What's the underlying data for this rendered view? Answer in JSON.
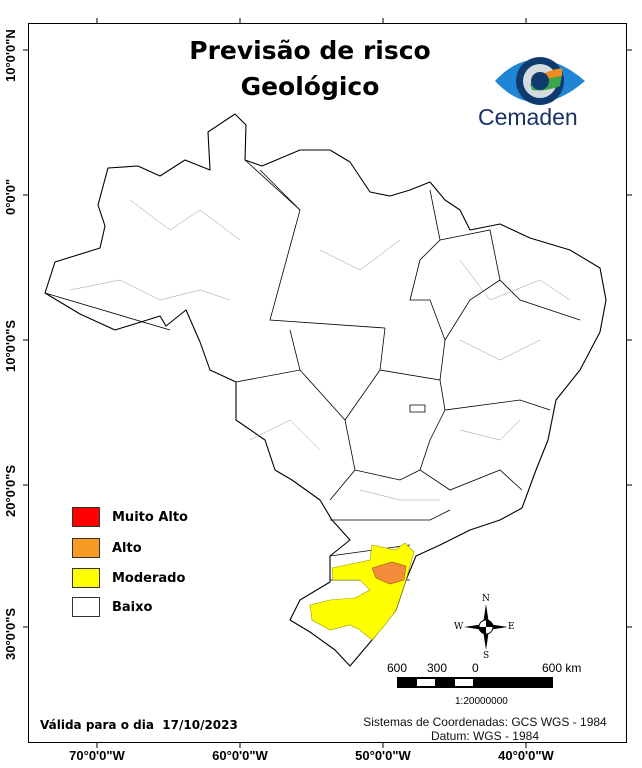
{
  "title": {
    "line1": "Previsão de risco",
    "line2": "Geológico"
  },
  "logo": {
    "text": "Cemaden"
  },
  "axes": {
    "longitude_labels": [
      "70°0'0\"W",
      "60°0'0\"W",
      "50°0'0\"W",
      "40°0'0\"W"
    ],
    "latitude_labels": [
      "10°0'0\"N",
      "0°0'0\"",
      "10°0'0\"S",
      "20°0'0\"S",
      "30°0'0\"S"
    ]
  },
  "legend": {
    "items": [
      {
        "label": "Muito Alto",
        "color": "#ff0000"
      },
      {
        "label": "Alto",
        "color": "#f59a23"
      },
      {
        "label": "Moderado",
        "color": "#ffff00"
      },
      {
        "label": "Baixo",
        "color": "#ffffff"
      }
    ]
  },
  "compass": {
    "n": "N",
    "s": "S",
    "e": "E",
    "w": "W"
  },
  "scale_bar": {
    "labels": [
      "600",
      "300",
      "0",
      "600 km"
    ],
    "ratio": "1:20000000"
  },
  "footer": {
    "valid_label": "Válida para o dia",
    "valid_date": "17/10/2023",
    "crs": "Sistemas de Coordenadas: GCS WGS - 1984",
    "datum": "Datum: WGS - 1984"
  }
}
